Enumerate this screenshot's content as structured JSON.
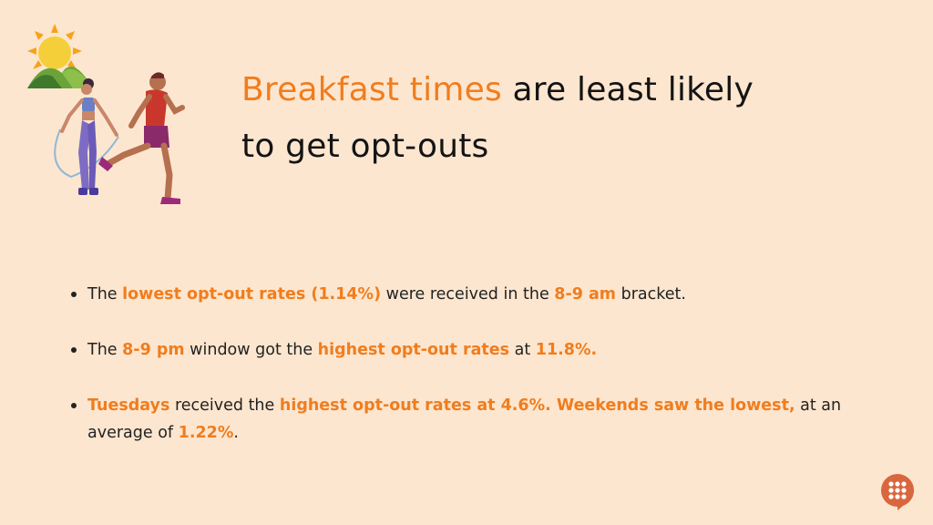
{
  "title": {
    "accent": "Breakfast times",
    "rest_line1": " are least likely",
    "rest_line2": "to get opt-outs"
  },
  "bullets": [
    {
      "parts": [
        {
          "text": "The ",
          "highlight": false
        },
        {
          "text": "lowest opt-out rates (1.14%)",
          "highlight": true
        },
        {
          "text": " were received in the ",
          "highlight": false
        },
        {
          "text": "8-9 am",
          "highlight": true
        },
        {
          "text": " bracket.",
          "highlight": false
        }
      ]
    },
    {
      "parts": [
        {
          "text": "The ",
          "highlight": false
        },
        {
          "text": "8-9 pm",
          "highlight": true
        },
        {
          "text": " window got the ",
          "highlight": false
        },
        {
          "text": "highest opt-out rates",
          "highlight": true
        },
        {
          "text": " at ",
          "highlight": false
        },
        {
          "text": "11.8%.",
          "highlight": true
        }
      ]
    },
    {
      "parts": [
        {
          "text": "Tuesdays",
          "highlight": true
        },
        {
          "text": " received the ",
          "highlight": false
        },
        {
          "text": "highest opt-out rates at 4.6%. Weekends saw the lowest,",
          "highlight": true
        },
        {
          "text": " at an average of ",
          "highlight": false
        },
        {
          "text": "1.22%",
          "highlight": true
        },
        {
          "text": ".",
          "highlight": false
        }
      ]
    }
  ],
  "colors": {
    "background": "#fde6cf",
    "accent": "#f07d1e",
    "text": "#141414",
    "logo": "#d9673d"
  },
  "icons": [
    "sun-icon",
    "hills-icon",
    "runner-figure",
    "jump-rope-figure",
    "chat-logo-icon"
  ]
}
